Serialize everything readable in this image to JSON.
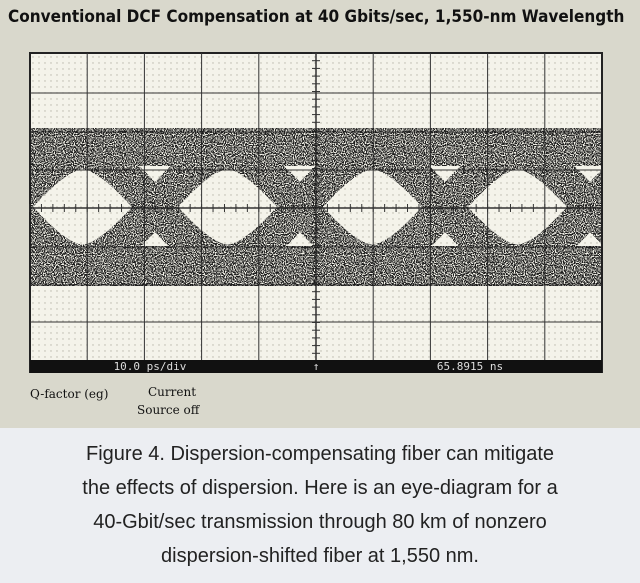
{
  "header": {
    "title": "Conventional DCF Compensation at 40 Gbits/sec, 1,550-nm Wavelength"
  },
  "scope": {
    "timebase": "10.0 ps/div",
    "position": "65.8915 ns",
    "q_factor": "Q-factor (eg)",
    "current": "Current",
    "source": "Source off"
  },
  "caption": {
    "lines": [
      "Figure 4. Dispersion-compensating fiber can mitigate",
      "the effects of dispersion. Here is an eye-diagram for a",
      "40-Gbit/sec transmission through 80 km of nonzero",
      "dispersion-shifted fiber at 1,550 nm."
    ]
  }
}
